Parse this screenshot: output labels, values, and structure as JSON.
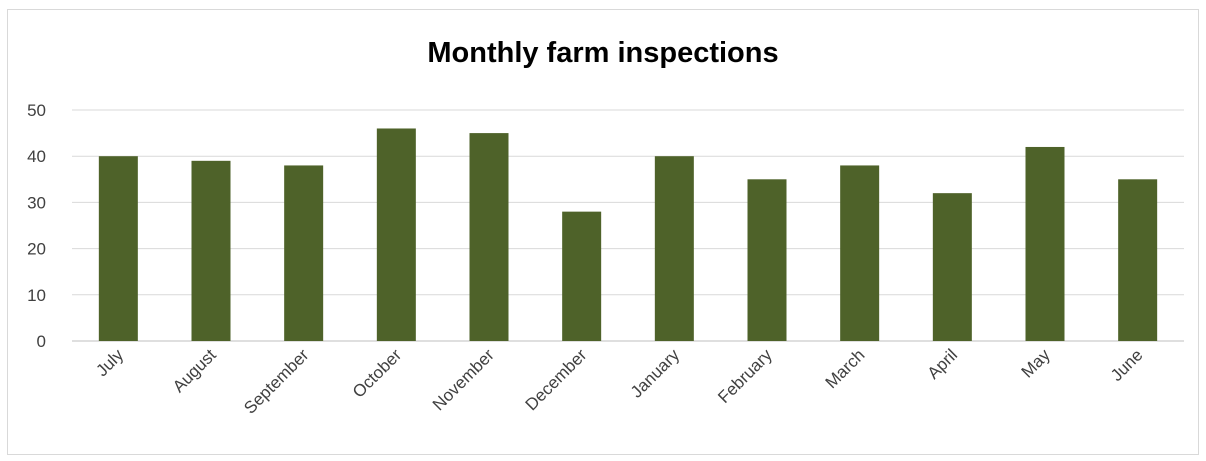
{
  "chart_data": {
    "type": "bar",
    "title": "Monthly farm inspections",
    "categories": [
      "July",
      "August",
      "September",
      "October",
      "November",
      "December",
      "January",
      "February",
      "March",
      "April",
      "May",
      "June"
    ],
    "values": [
      40,
      39,
      38,
      46,
      45,
      28,
      40,
      35,
      38,
      32,
      42,
      35
    ],
    "ylim": [
      0,
      50
    ],
    "yticks": [
      0,
      10,
      20,
      30,
      40,
      50
    ],
    "xlabel": "",
    "ylabel": "",
    "grid": true,
    "legend": "none",
    "bar_color": "#4e6229"
  }
}
